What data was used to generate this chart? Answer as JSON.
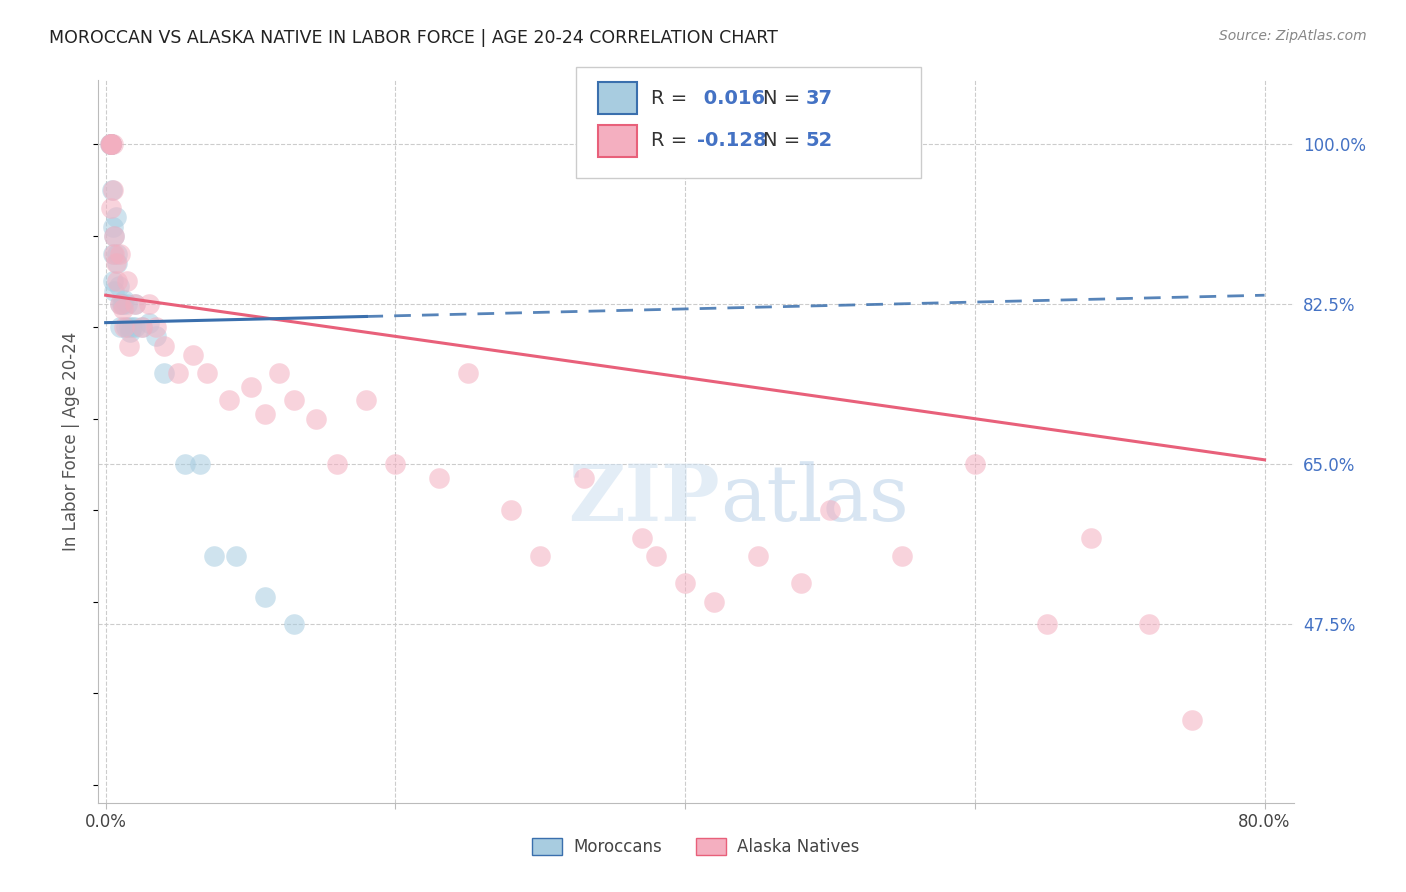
{
  "title": "MOROCCAN VS ALASKA NATIVE IN LABOR FORCE | AGE 20-24 CORRELATION CHART",
  "source": "Source: ZipAtlas.com",
  "ylabel": "In Labor Force | Age 20-24",
  "xlim": [
    -0.5,
    82.0
  ],
  "ylim": [
    28.0,
    107.0
  ],
  "ytick_positions": [
    47.5,
    65.0,
    82.5,
    100.0
  ],
  "ytick_labels": [
    "47.5%",
    "65.0%",
    "82.5%",
    "100.0%"
  ],
  "xtick_positions": [
    0,
    20,
    40,
    60,
    80
  ],
  "xtick_labels": [
    "0.0%",
    "",
    "",
    "",
    "80.0%"
  ],
  "r_blue": "0.016",
  "n_blue": "37",
  "r_pink": "-0.128",
  "n_pink": "52",
  "blue_color": "#a8cce0",
  "pink_color": "#f4afc0",
  "blue_line_color": "#3a6fad",
  "pink_line_color": "#e8607a",
  "legend_text_color": "#4472c4",
  "grid_color": "#cccccc",
  "background_color": "#ffffff",
  "blue_line_start_y": 80.5,
  "blue_line_end_y": 83.5,
  "pink_line_start_y": 83.5,
  "pink_line_end_y": 65.5,
  "blue_solid_end_x": 18.0,
  "blue_x": [
    0.3,
    0.35,
    0.35,
    0.4,
    0.4,
    0.45,
    0.5,
    0.5,
    0.5,
    0.6,
    0.7,
    0.8,
    0.9,
    1.0,
    1.0,
    1.1,
    1.2,
    1.3,
    1.4,
    1.5,
    1.8,
    2.0,
    2.5,
    3.0,
    3.5,
    4.0,
    5.5,
    6.5,
    7.5,
    9.0,
    11.0,
    13.0,
    2.0,
    1.6,
    1.7,
    0.8,
    0.6
  ],
  "blue_y": [
    100.0,
    100.0,
    100.0,
    100.0,
    100.0,
    95.0,
    91.0,
    88.0,
    85.0,
    84.0,
    92.0,
    87.0,
    84.5,
    82.5,
    80.0,
    82.5,
    82.5,
    83.0,
    80.0,
    82.5,
    80.0,
    82.5,
    80.0,
    80.5,
    79.0,
    75.0,
    65.0,
    65.0,
    55.0,
    55.0,
    50.5,
    47.5,
    80.0,
    80.0,
    79.5,
    88.0,
    90.0
  ],
  "pink_x": [
    0.3,
    0.35,
    0.35,
    0.4,
    0.4,
    0.5,
    0.5,
    0.55,
    0.6,
    0.7,
    0.8,
    1.0,
    1.0,
    1.2,
    1.3,
    1.5,
    1.6,
    2.0,
    2.5,
    3.0,
    3.5,
    4.0,
    5.0,
    6.0,
    7.0,
    8.5,
    10.0,
    11.0,
    12.0,
    13.0,
    14.5,
    16.0,
    18.0,
    20.0,
    23.0,
    25.0,
    28.0,
    30.0,
    33.0,
    37.0,
    38.0,
    40.0,
    42.0,
    45.0,
    48.0,
    50.0,
    55.0,
    60.0,
    65.0,
    68.0,
    72.0,
    75.0
  ],
  "pink_y": [
    100.0,
    100.0,
    100.0,
    100.0,
    93.0,
    100.0,
    95.0,
    90.0,
    88.0,
    87.0,
    85.0,
    88.0,
    82.5,
    82.0,
    80.0,
    85.0,
    78.0,
    82.5,
    80.0,
    82.5,
    80.0,
    78.0,
    75.0,
    77.0,
    75.0,
    72.0,
    73.5,
    70.5,
    75.0,
    72.0,
    70.0,
    65.0,
    72.0,
    65.0,
    63.5,
    75.0,
    60.0,
    55.0,
    63.5,
    57.0,
    55.0,
    52.0,
    50.0,
    55.0,
    52.0,
    60.0,
    55.0,
    65.0,
    47.5,
    57.0,
    47.5,
    37.0
  ]
}
